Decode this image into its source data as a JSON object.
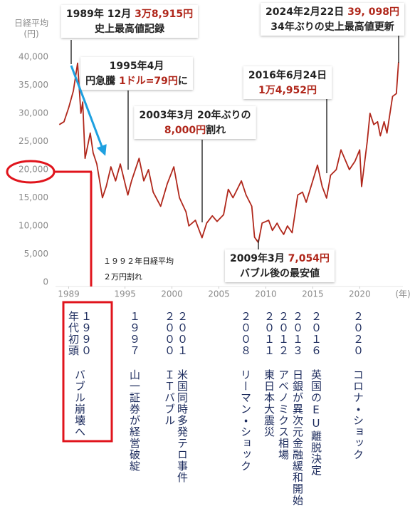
{
  "chart_data": {
    "type": "line",
    "y_label": [
      "日経平均",
      "(円)"
    ],
    "x_label": "(年)",
    "xlim": [
      1987.6,
      2024.6
    ],
    "xticks": [
      1989,
      1995,
      2000,
      2005,
      2010,
      2015,
      2020
    ],
    "ylim": [
      0,
      40000
    ],
    "yticks": [
      0,
      {
        "value": 5000,
        "label": "5,000"
      },
      {
        "value": 10000,
        "label": "10,000"
      },
      {
        "value": 15000,
        "label": "15,000"
      },
      {
        "value": 20000,
        "label": "20,000"
      },
      {
        "value": 25000,
        "label": "25,000"
      },
      {
        "value": 30000,
        "label": "30,000"
      },
      {
        "value": 35000,
        "label": "35,000"
      },
      {
        "value": 40000,
        "label": "40,000"
      }
    ],
    "grid": false,
    "series": [
      {
        "name": "日経平均",
        "color": "#b0271b",
        "x": [
          1988.0,
          1988.5,
          1989.0,
          1989.5,
          1989.95,
          1990.3,
          1990.5,
          1990.75,
          1991.0,
          1991.3,
          1991.6,
          1992.0,
          1992.6,
          1993.0,
          1993.5,
          1994.0,
          1994.5,
          1995.3,
          1995.7,
          1996.5,
          1997.0,
          1997.5,
          1998.0,
          1998.8,
          1999.5,
          2000.2,
          2000.8,
          2001.5,
          2001.8,
          2002.5,
          2003.2,
          2003.7,
          2004.3,
          2004.8,
          2005.5,
          2006.0,
          2006.5,
          2007.4,
          2007.9,
          2008.5,
          2008.8,
          2009.2,
          2009.6,
          2010.3,
          2010.7,
          2011.2,
          2011.5,
          2011.9,
          2012.3,
          2012.8,
          2013.4,
          2013.9,
          2014.3,
          2014.9,
          2015.5,
          2016.0,
          2016.47,
          2016.9,
          2017.5,
          2018.0,
          2018.9,
          2019.5,
          2020.0,
          2020.2,
          2020.8,
          2021.1,
          2021.5,
          2021.9,
          2022.2,
          2022.6,
          2022.9,
          2023.5,
          2023.9,
          2024.14
        ],
        "values": [
          28000,
          28500,
          31000,
          34000,
          38915,
          30000,
          32000,
          22000,
          24000,
          26500,
          23000,
          21000,
          15000,
          17000,
          20500,
          18000,
          21000,
          15500,
          18000,
          22000,
          18000,
          20000,
          16000,
          13500,
          17500,
          20500,
          15000,
          12500,
          10000,
          11000,
          7900,
          10500,
          11800,
          10800,
          12000,
          16500,
          15000,
          18000,
          15500,
          13500,
          8000,
          7054,
          10500,
          11000,
          9200,
          10500,
          9500,
          8500,
          10000,
          8800,
          15500,
          16000,
          14200,
          17500,
          20800,
          17000,
          14952,
          19000,
          20000,
          23500,
          20000,
          21500,
          23500,
          17000,
          25000,
          30000,
          28000,
          28500,
          26000,
          28500,
          26500,
          33000,
          33500,
          39098
        ]
      }
    ],
    "annotations": [
      {
        "lines": [
          [
            {
              "text": "1989年 12月 "
            },
            {
              "text": "3万8,915円",
              "color": "#b0271b"
            }
          ],
          [
            {
              "text": "史上最高値記録"
            }
          ]
        ]
      },
      {
        "lines": [
          [
            {
              "text": "1995年4月"
            }
          ],
          [
            {
              "text": "円急騰 "
            },
            {
              "text": "1ドル=79円",
              "color": "#b0271b"
            },
            {
              "text": "に"
            }
          ]
        ]
      },
      {
        "lines": [
          [
            {
              "text": "2003年3月 20年ぶりの"
            }
          ],
          [
            {
              "text": "8,000円",
              "color": "#b0271b"
            },
            {
              "text": "割れ"
            }
          ]
        ]
      },
      {
        "lines": [
          [
            {
              "text": "2016年6月24日"
            }
          ],
          [
            {
              "text": "1万4,952円",
              "color": "#b0271b"
            }
          ]
        ]
      },
      {
        "lines": [
          [
            {
              "text": "2024年2月22日 "
            },
            {
              "text": "39, 098円",
              "color": "#b0271b"
            }
          ],
          [
            {
              "text": "34年ぶりの史上最高値更新"
            }
          ]
        ]
      },
      {
        "lines": [
          [
            {
              "text": "2009年3月 "
            },
            {
              "text": "7,054円",
              "color": "#b0271b"
            }
          ],
          [
            {
              "text": "バブル後の最安値"
            }
          ]
        ]
      }
    ]
  },
  "note": [
    "１９９２年日経平均",
    "２万円割れ"
  ],
  "events": [
    {
      "year": "１９９０年代初頭",
      "label": "バブル崩壊へ"
    },
    {
      "year": "１９９７",
      "label": "山一証券が経営破綻"
    },
    {
      "year": "２０００",
      "label": "ＩＴバブル"
    },
    {
      "year": "２００１",
      "label": "米国同時多発テロ事件"
    },
    {
      "year": "２００８",
      "label": "リーマン・ショック"
    },
    {
      "year": "２０１１",
      "label": "東日本大震災"
    },
    {
      "year": "２０１２",
      "label": "アベノミクス相場"
    },
    {
      "year": "２０１３",
      "label": "日銀が異次元金融緩和開始"
    },
    {
      "year": "２０１６",
      "label": "英国のEU離脱決定"
    },
    {
      "year": "２０２０",
      "label": "コロナ・ショック"
    }
  ]
}
